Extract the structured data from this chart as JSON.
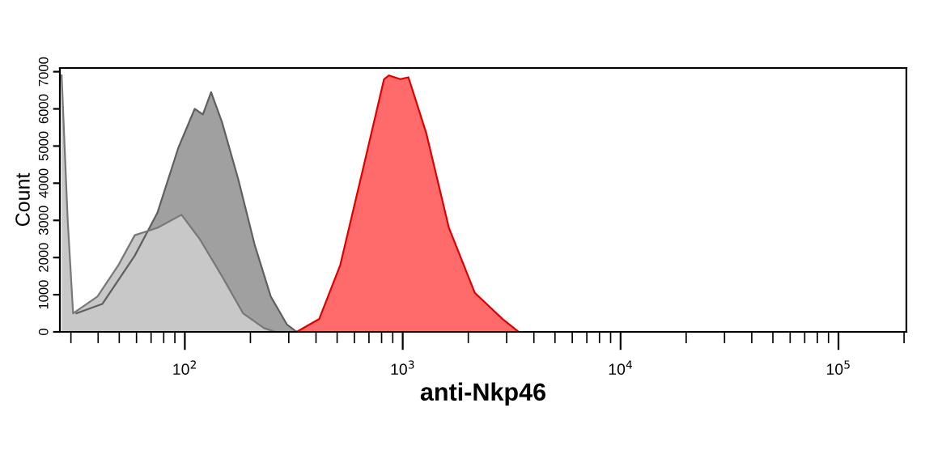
{
  "chart_data": {
    "type": "area",
    "xlabel": "anti-Nkp46",
    "ylabel": "Count",
    "log": "x",
    "xlim": [
      26.7,
      205000
    ],
    "ylim": [
      0,
      7100
    ],
    "xticks": [
      {
        "value": 100,
        "label": "10$^{2}$"
      },
      {
        "value": 1000,
        "label": "10$^{3}$"
      },
      {
        "value": 10000,
        "label": "10$^{4}$"
      },
      {
        "value": 100000,
        "label": "10$^{5}$"
      }
    ],
    "yticks": [
      0,
      1000,
      2000,
      3000,
      4000,
      5000,
      6000,
      7000
    ],
    "grid": false,
    "series": [
      {
        "color": "#a0a0a0",
        "x": [
          31.8,
          41.8,
          58.9,
          74.8,
          93.3,
          111,
          121,
          132,
          148,
          176,
          209,
          248,
          294,
          326
        ],
        "values": [
          500,
          750,
          2050,
          3200,
          4950,
          6000,
          5850,
          6450,
          5650,
          4100,
          2350,
          950,
          200,
          0
        ]
      },
      {
        "color": "#c8c8c8",
        "x": [
          27.2,
          29,
          30.7,
          39.7,
          49.6,
          58.9,
          74.8,
          96.6,
          117,
          148,
          185,
          231,
          260
        ],
        "values": [
          6900,
          3000,
          500,
          950,
          1800,
          2600,
          2800,
          3150,
          2500,
          1500,
          500,
          100,
          0
        ]
      },
      {
        "color": "#ff6b6b",
        "x": [
          326,
          414,
          517,
          646,
          821,
          865,
          975,
          1062,
          1282,
          1629,
          2143,
          2865,
          3404
        ],
        "values": [
          0,
          350,
          1800,
          4200,
          6800,
          6900,
          6800,
          6850,
          5350,
          2800,
          1050,
          350,
          0
        ]
      }
    ]
  }
}
